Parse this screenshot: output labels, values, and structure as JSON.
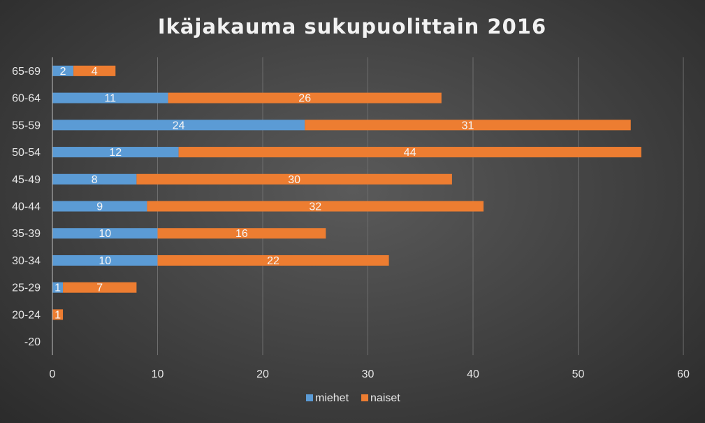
{
  "chart_data": {
    "type": "bar",
    "orientation": "horizontal",
    "stacked": true,
    "title": "Ikäjakauma sukupuolittain 2016",
    "xlabel": "",
    "ylabel": "",
    "xlim": [
      0,
      60
    ],
    "xticks": [
      "0",
      "10",
      "20",
      "30",
      "40",
      "50",
      "60"
    ],
    "categories": [
      "65-69",
      "60-64",
      "55-59",
      "50-54",
      "45-49",
      "40-44",
      "35-39",
      "30-34",
      "25-29",
      "20-24",
      "-20"
    ],
    "series": [
      {
        "name": "miehet",
        "color": "#5b9bd5",
        "values": [
          2,
          11,
          24,
          12,
          8,
          9,
          10,
          10,
          1,
          0,
          0
        ]
      },
      {
        "name": "naiset",
        "color": "#ed7d31",
        "values": [
          4,
          26,
          31,
          44,
          30,
          32,
          16,
          22,
          7,
          1,
          0
        ]
      }
    ],
    "grid": true,
    "legend_position": "bottom"
  }
}
